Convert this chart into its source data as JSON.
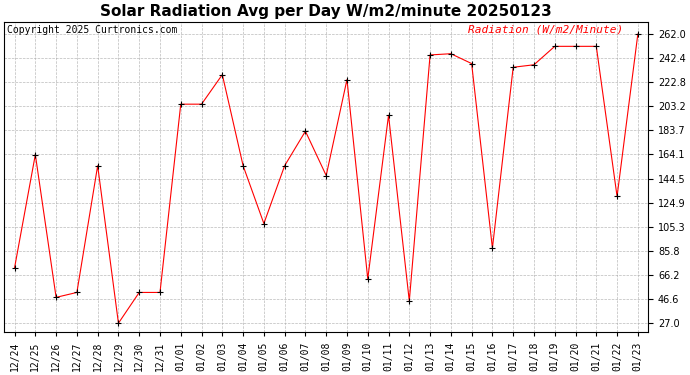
{
  "title": "Solar Radiation Avg per Day W/m2/minute 20250123",
  "copyright": "Copyright 2025 Curtronics.com",
  "legend_label": "Radiation (W/m2/Minute)",
  "dates": [
    "12/24",
    "12/25",
    "12/26",
    "12/27",
    "12/28",
    "12/29",
    "12/30",
    "12/31",
    "01/01",
    "01/02",
    "01/03",
    "01/04",
    "01/05",
    "01/06",
    "01/07",
    "01/08",
    "01/09",
    "01/10",
    "01/11",
    "01/12",
    "01/13",
    "01/14",
    "01/15",
    "01/16",
    "01/17",
    "01/18",
    "01/19",
    "01/20",
    "01/21",
    "01/22",
    "01/23"
  ],
  "values": [
    72,
    164,
    48,
    52,
    155,
    27,
    52,
    52,
    205,
    205,
    229,
    155,
    108,
    155,
    183,
    147,
    225,
    63,
    196,
    45,
    245,
    246,
    238,
    88,
    235,
    237,
    252,
    252,
    252,
    130,
    262
  ],
  "line_color": "red",
  "marker": "+",
  "marker_color": "black",
  "bg_color": "white",
  "grid_color": "#aaaaaa",
  "yticks": [
    27.0,
    46.6,
    66.2,
    85.8,
    105.3,
    124.9,
    144.5,
    164.1,
    183.7,
    203.2,
    222.8,
    242.4,
    262.0
  ],
  "ylim": [
    19.5,
    272
  ],
  "title_fontsize": 11,
  "legend_fontsize": 8,
  "copyright_fontsize": 7,
  "tick_fontsize": 7,
  "ytick_fontsize": 7
}
